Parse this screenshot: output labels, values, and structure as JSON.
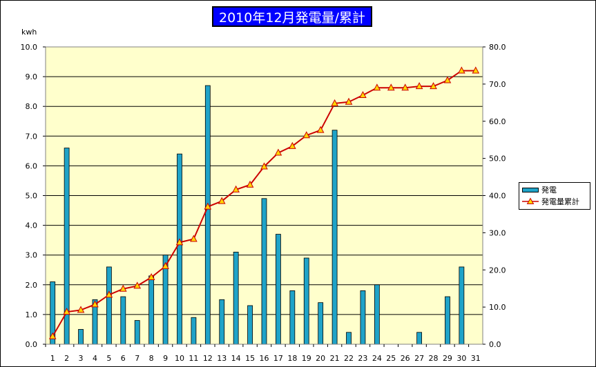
{
  "title": "2010年12月発電量/累計",
  "unit_label": "kwh",
  "colors": {
    "title_bg": "#0000ff",
    "title_text": "#ffffff",
    "plot_bg": "#ffffcc",
    "bar": "#1fa3c8",
    "line": "#cc0000",
    "marker": "#ffd700"
  },
  "legend": {
    "items": [
      "発電",
      "発電量累計"
    ]
  },
  "chart_data": {
    "type": "bar",
    "title": "2010年12月発電量/累計",
    "xlabel": "",
    "ylabel": "kwh",
    "categories": [
      "1",
      "2",
      "3",
      "4",
      "5",
      "6",
      "7",
      "8",
      "9",
      "10",
      "11",
      "12",
      "13",
      "14",
      "15",
      "16",
      "17",
      "18",
      "19",
      "20",
      "21",
      "22",
      "23",
      "24",
      "25",
      "26",
      "27",
      "28",
      "29",
      "30",
      "31"
    ],
    "series": [
      {
        "name": "発電",
        "type": "bar",
        "axis": "left",
        "values": [
          2.1,
          6.6,
          0.5,
          1.5,
          2.6,
          1.6,
          0.8,
          2.3,
          3.0,
          6.4,
          0.9,
          8.7,
          1.5,
          3.1,
          1.3,
          4.9,
          3.7,
          1.8,
          2.9,
          1.4,
          7.2,
          0.4,
          1.8,
          2.0,
          0.0,
          0.0,
          0.4,
          0.0,
          1.6,
          2.6,
          0.0
        ]
      },
      {
        "name": "発電量累計",
        "type": "line",
        "axis": "right",
        "values": [
          2.1,
          8.7,
          9.2,
          10.7,
          13.3,
          14.9,
          15.7,
          18.0,
          21.0,
          27.4,
          28.3,
          37.0,
          38.5,
          41.6,
          42.9,
          47.8,
          51.5,
          53.3,
          56.2,
          57.6,
          64.8,
          65.2,
          67.0,
          69.0,
          69.0,
          69.0,
          69.4,
          69.4,
          71.0,
          73.6,
          73.6
        ]
      }
    ],
    "y_left": {
      "lim": [
        0,
        10
      ],
      "ticks": [
        "0.0",
        "1.0",
        "2.0",
        "3.0",
        "4.0",
        "5.0",
        "6.0",
        "7.0",
        "8.0",
        "9.0",
        "10.0"
      ]
    },
    "y_right": {
      "lim": [
        0,
        80
      ],
      "ticks": [
        "0.0",
        "10.0",
        "20.0",
        "30.0",
        "40.0",
        "50.0",
        "60.0",
        "70.0",
        "80.0"
      ]
    },
    "grid": true,
    "legend_position": "right"
  }
}
